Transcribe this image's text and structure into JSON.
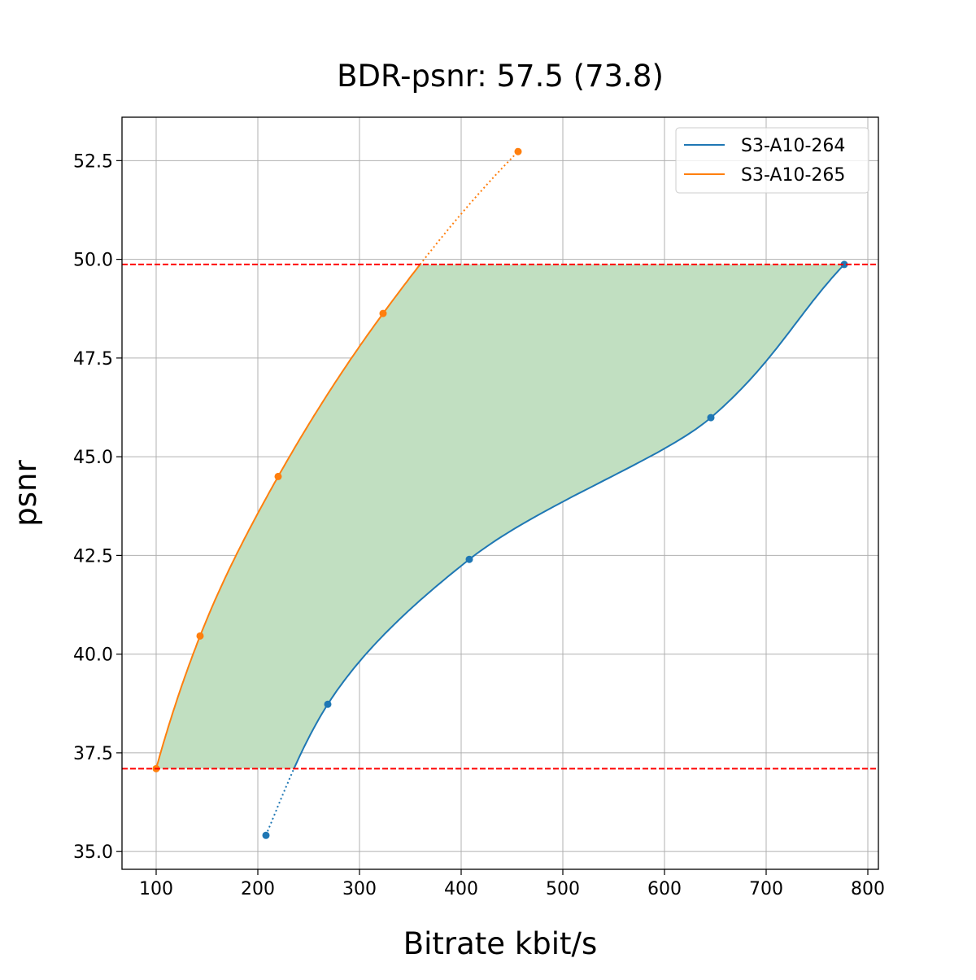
{
  "chart_data": {
    "type": "line",
    "title": "BDR-psnr: 57.5 (73.8)",
    "xlabel": "Bitrate kbit/s",
    "ylabel": "psnr",
    "xlim": [
      66.4,
      810.4
    ],
    "ylim": [
      34.55,
      53.6
    ],
    "xticks": [
      100,
      200,
      300,
      400,
      500,
      600,
      700,
      800
    ],
    "yticks": [
      35.0,
      37.5,
      40.0,
      42.5,
      45.0,
      47.5,
      50.0,
      52.5
    ],
    "xtick_labels": [
      "100",
      "200",
      "300",
      "400",
      "500",
      "600",
      "700",
      "800"
    ],
    "ytick_labels": [
      "35.0",
      "37.5",
      "40.0",
      "42.5",
      "45.0",
      "47.5",
      "50.0",
      "52.5"
    ],
    "grid": true,
    "legend_position": "top-right",
    "series": [
      {
        "name": "S3-A10-264",
        "color": "#1f77b4",
        "x": [
          208,
          268.8,
          408,
          645.6,
          776.8
        ],
        "y": [
          35.41,
          38.73,
          42.4,
          45.99,
          49.87
        ]
      },
      {
        "name": "S3-A10-265",
        "color": "#ff7f0e",
        "x": [
          100,
          143.2,
          220,
          323.2,
          456
        ],
        "y": [
          37.1,
          40.46,
          44.5,
          48.63,
          52.73
        ]
      }
    ],
    "overlap_range": {
      "lower": 37.1,
      "upper": 49.87,
      "line_color": "#ff0000",
      "fill_color": "#c1dfc1"
    }
  }
}
